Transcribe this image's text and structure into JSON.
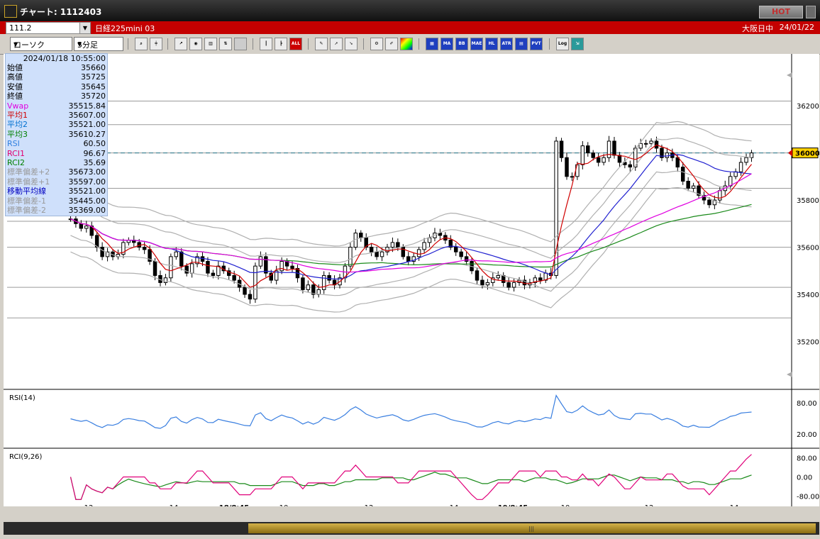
{
  "window": {
    "title": "チャート: 1112403",
    "hot_label": "HOT"
  },
  "symbol": {
    "code": "111.2",
    "name": "日経225mini 03",
    "market": "大阪日中",
    "date": "24/01/22"
  },
  "toolbar": {
    "chart_type": "ローソク",
    "interval": "5分足",
    "buttons": [
      "zoom-icon",
      "crosshair-icon",
      "trend-icon",
      "tool-icon",
      "chart-icon",
      "scale-icon",
      "blank-icon",
      "candle-icon",
      "candle-adj-icon",
      "all-icon",
      "draw-icon",
      "select-icon",
      "arrow-icon",
      "settings-icon",
      "pen-icon",
      "palette-icon",
      "volume-icon",
      "ma-icon",
      "bb-icon",
      "mae-icon",
      "hl-icon",
      "atr-icon",
      "bb2-icon",
      "pvt-icon",
      "log-icon",
      "export-icon"
    ],
    "button_labels": {
      "all": "ALL",
      "ma": "MA",
      "bb": "BB",
      "mae": "MAE",
      "hl": "HL",
      "atr": "ATR",
      "pvt": "PVT",
      "log": "Log"
    }
  },
  "info": {
    "datetime": "2024/01/18 10:55:00",
    "rows": [
      {
        "label": "始値",
        "value": "35660",
        "color": "#000000"
      },
      {
        "label": "高値",
        "value": "35725",
        "color": "#000000"
      },
      {
        "label": "安値",
        "value": "35645",
        "color": "#000000"
      },
      {
        "label": "終値",
        "value": "35720",
        "color": "#000000"
      },
      {
        "label": "Vwap",
        "value": "35515.84",
        "color": "#e000e0"
      },
      {
        "label": "平均1",
        "value": "35607.00",
        "color": "#d00000"
      },
      {
        "label": "平均2",
        "value": "35521.00",
        "color": "#0070d0"
      },
      {
        "label": "平均3",
        "value": "35610.27",
        "color": "#008000"
      },
      {
        "label": "RSI",
        "value": "60.50",
        "color": "#3080e0"
      },
      {
        "label": "RCI1",
        "value": "96.67",
        "color": "#e00070"
      },
      {
        "label": "RCI2",
        "value": "35.69",
        "color": "#008000"
      },
      {
        "label": "標準偏差+2",
        "value": "35673.00",
        "color": "#999999"
      },
      {
        "label": "標準偏差+1",
        "value": "35597.00",
        "color": "#999999"
      },
      {
        "label": "移動平均線",
        "value": "35521.00",
        "color": "#0000c0"
      },
      {
        "label": "標準偏差-1",
        "value": "35445.00",
        "color": "#999999"
      },
      {
        "label": "標準偏差-2",
        "value": "35369.00",
        "color": "#999999"
      }
    ]
  },
  "chart_data": {
    "type": "candlestick",
    "price_axis": {
      "ticks": [
        "36200",
        "36000",
        "35800",
        "35600",
        "35400",
        "35200"
      ],
      "tick_values": [
        36200,
        36000,
        35800,
        35600,
        35400,
        35200
      ],
      "current": "36000"
    },
    "time_axis": [
      "12",
      "14",
      "18/8:45",
      "10",
      "12",
      "14",
      "19/8:45",
      "10",
      "12",
      "14"
    ],
    "rsi": {
      "label": "RSI(14)",
      "ticks": [
        "80.00",
        "20.00"
      ]
    },
    "rci": {
      "label": "RCI(9,26)",
      "ticks": [
        "80.00",
        "0.00",
        "-80.00"
      ]
    },
    "close": [
      35720,
      35700,
      35680,
      35690,
      35650,
      35600,
      35560,
      35580,
      35560,
      35570,
      35620,
      35630,
      35620,
      35600,
      35590,
      35540,
      35480,
      35450,
      35470,
      35560,
      35580,
      35520,
      35490,
      35530,
      35560,
      35540,
      35490,
      35480,
      35520,
      35500,
      35480,
      35460,
      35430,
      35400,
      35380,
      35520,
      35560,
      35490,
      35460,
      35500,
      35540,
      35520,
      35510,
      35470,
      35420,
      35440,
      35400,
      35420,
      35480,
      35460,
      35440,
      35470,
      35520,
      35600,
      35660,
      35640,
      35600,
      35580,
      35560,
      35580,
      35600,
      35620,
      35600,
      35560,
      35540,
      35560,
      35590,
      35620,
      35640,
      35660,
      35650,
      35630,
      35600,
      35580,
      35560,
      35540,
      35500,
      35460,
      35440,
      35450,
      35470,
      35480,
      35450,
      35430,
      35450,
      35460,
      35440,
      35450,
      35470,
      35460,
      35490,
      35480,
      36050,
      35980,
      35900,
      35900,
      35950,
      36030,
      36000,
      35980,
      35960,
      35980,
      36050,
      35990,
      35960,
      35950,
      35940,
      36020,
      36040,
      36040,
      36050,
      36020,
      35980,
      36000,
      35980,
      35940,
      35880,
      35850,
      35860,
      35820,
      35800,
      35780,
      35800,
      35840,
      35860,
      35900,
      35920,
      35960,
      35980,
      36000
    ]
  }
}
